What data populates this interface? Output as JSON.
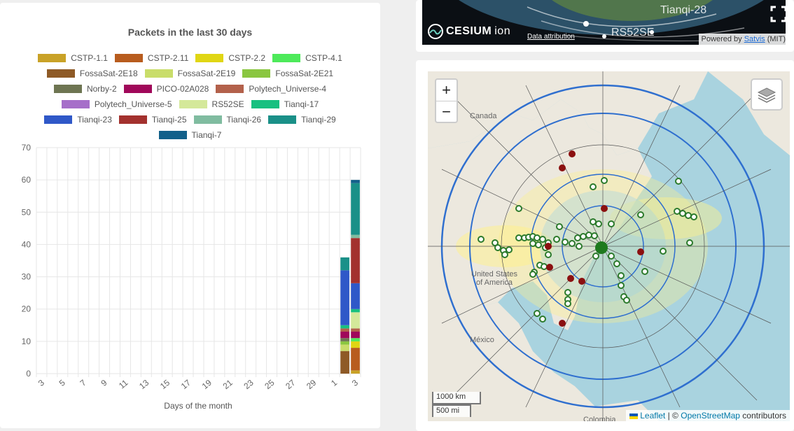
{
  "chart_data": {
    "type": "bar",
    "stacked": true,
    "title": "Packets in the last 30 days",
    "xlabel": "Days of the month",
    "ylabel": "",
    "ylim": [
      0,
      70
    ],
    "yticks": [
      0,
      10,
      20,
      30,
      40,
      50,
      60,
      70
    ],
    "grid": true,
    "legend_position": "top",
    "categories": [
      "3",
      "4",
      "5",
      "6",
      "7",
      "8",
      "9",
      "10",
      "11",
      "12",
      "13",
      "14",
      "15",
      "16",
      "17",
      "18",
      "19",
      "20",
      "21",
      "22",
      "23",
      "24",
      "25",
      "26",
      "27",
      "28",
      "29",
      "30",
      "1",
      "2",
      "3"
    ],
    "x_tick_labels": [
      "3",
      "5",
      "7",
      "9",
      "11",
      "13",
      "15",
      "17",
      "19",
      "21",
      "23",
      "25",
      "27",
      "29",
      "1",
      "3"
    ],
    "series": [
      {
        "name": "CSTP-1.1",
        "color": "#c9a227",
        "values": [
          0,
          0,
          0,
          0,
          0,
          0,
          0,
          0,
          0,
          0,
          0,
          0,
          0,
          0,
          0,
          0,
          0,
          0,
          0,
          0,
          0,
          0,
          0,
          0,
          0,
          0,
          0,
          0,
          0,
          0,
          1
        ]
      },
      {
        "name": "CSTP-2.11",
        "color": "#b85c1e",
        "values": [
          0,
          0,
          0,
          0,
          0,
          0,
          0,
          0,
          0,
          0,
          0,
          0,
          0,
          0,
          0,
          0,
          0,
          0,
          0,
          0,
          0,
          0,
          0,
          0,
          0,
          0,
          0,
          0,
          0,
          0,
          7
        ]
      },
      {
        "name": "CSTP-2.2",
        "color": "#e0d614",
        "values": [
          0,
          0,
          0,
          0,
          0,
          0,
          0,
          0,
          0,
          0,
          0,
          0,
          0,
          0,
          0,
          0,
          0,
          0,
          0,
          0,
          0,
          0,
          0,
          0,
          0,
          0,
          0,
          0,
          0,
          0,
          2
        ]
      },
      {
        "name": "CSTP-4.1",
        "color": "#4dea5a",
        "values": [
          0,
          0,
          0,
          0,
          0,
          0,
          0,
          0,
          0,
          0,
          0,
          0,
          0,
          0,
          0,
          0,
          0,
          0,
          0,
          0,
          0,
          0,
          0,
          0,
          0,
          0,
          0,
          0,
          0,
          0,
          1
        ]
      },
      {
        "name": "FossaSat-2E18",
        "color": "#8e5a26",
        "values": [
          0,
          0,
          0,
          0,
          0,
          0,
          0,
          0,
          0,
          0,
          0,
          0,
          0,
          0,
          0,
          0,
          0,
          0,
          0,
          0,
          0,
          0,
          0,
          0,
          0,
          0,
          0,
          0,
          0,
          7,
          0
        ]
      },
      {
        "name": "FossaSat-2E19",
        "color": "#c9dd6a",
        "values": [
          0,
          0,
          0,
          0,
          0,
          0,
          0,
          0,
          0,
          0,
          0,
          0,
          0,
          0,
          0,
          0,
          0,
          0,
          0,
          0,
          0,
          0,
          0,
          0,
          0,
          0,
          0,
          0,
          0,
          2,
          0
        ]
      },
      {
        "name": "FossaSat-2E21",
        "color": "#8ac640",
        "values": [
          0,
          0,
          0,
          0,
          0,
          0,
          0,
          0,
          0,
          0,
          0,
          0,
          0,
          0,
          0,
          0,
          0,
          0,
          0,
          0,
          0,
          0,
          0,
          0,
          0,
          0,
          0,
          0,
          0,
          1,
          0
        ]
      },
      {
        "name": "Norby-2",
        "color": "#6e7552",
        "values": [
          0,
          0,
          0,
          0,
          0,
          0,
          0,
          0,
          0,
          0,
          0,
          0,
          0,
          0,
          0,
          0,
          0,
          0,
          0,
          0,
          0,
          0,
          0,
          0,
          0,
          0,
          0,
          0,
          0,
          1,
          0
        ]
      },
      {
        "name": "PICO-02A028",
        "color": "#a0085a",
        "values": [
          0,
          0,
          0,
          0,
          0,
          0,
          0,
          0,
          0,
          0,
          0,
          0,
          0,
          0,
          0,
          0,
          0,
          0,
          0,
          0,
          0,
          0,
          0,
          0,
          0,
          0,
          0,
          0,
          0,
          2,
          2
        ]
      },
      {
        "name": "Polytech_Universe-4",
        "color": "#b3614b",
        "values": [
          0,
          0,
          0,
          0,
          0,
          0,
          0,
          0,
          0,
          0,
          0,
          0,
          0,
          0,
          0,
          0,
          0,
          0,
          0,
          0,
          0,
          0,
          0,
          0,
          0,
          0,
          0,
          0,
          0,
          1,
          1
        ]
      },
      {
        "name": "Polytech_Universe-5",
        "color": "#a66fc9",
        "values": [
          0,
          0,
          0,
          0,
          0,
          0,
          0,
          0,
          0,
          0,
          0,
          0,
          0,
          0,
          0,
          0,
          0,
          0,
          0,
          0,
          0,
          0,
          0,
          0,
          0,
          0,
          0,
          0,
          0,
          0,
          0
        ]
      },
      {
        "name": "RS52SE",
        "color": "#d4e89a",
        "values": [
          0,
          0,
          0,
          0,
          0,
          0,
          0,
          0,
          0,
          0,
          0,
          0,
          0,
          0,
          0,
          0,
          0,
          0,
          0,
          0,
          0,
          0,
          0,
          0,
          0,
          0,
          0,
          0,
          0,
          0,
          5
        ]
      },
      {
        "name": "Tianqi-17",
        "color": "#18c080",
        "values": [
          0,
          0,
          0,
          0,
          0,
          0,
          0,
          0,
          0,
          0,
          0,
          0,
          0,
          0,
          0,
          0,
          0,
          0,
          0,
          0,
          0,
          0,
          0,
          0,
          0,
          0,
          0,
          0,
          0,
          1,
          1
        ]
      },
      {
        "name": "Tianqi-23",
        "color": "#2f58c8",
        "values": [
          0,
          0,
          0,
          0,
          0,
          0,
          0,
          0,
          0,
          0,
          0,
          0,
          0,
          0,
          0,
          0,
          0,
          0,
          0,
          0,
          0,
          0,
          0,
          0,
          0,
          0,
          0,
          0,
          0,
          17,
          8
        ]
      },
      {
        "name": "Tianqi-25",
        "color": "#a3312e",
        "values": [
          0,
          0,
          0,
          0,
          0,
          0,
          0,
          0,
          0,
          0,
          0,
          0,
          0,
          0,
          0,
          0,
          0,
          0,
          0,
          0,
          0,
          0,
          0,
          0,
          0,
          0,
          0,
          0,
          0,
          0,
          14
        ]
      },
      {
        "name": "Tianqi-26",
        "color": "#80bca0",
        "values": [
          0,
          0,
          0,
          0,
          0,
          0,
          0,
          0,
          0,
          0,
          0,
          0,
          0,
          0,
          0,
          0,
          0,
          0,
          0,
          0,
          0,
          0,
          0,
          0,
          0,
          0,
          0,
          0,
          0,
          0,
          1
        ]
      },
      {
        "name": "Tianqi-29",
        "color": "#1a9088",
        "values": [
          0,
          0,
          0,
          0,
          0,
          0,
          0,
          0,
          0,
          0,
          0,
          0,
          0,
          0,
          0,
          0,
          0,
          0,
          0,
          0,
          0,
          0,
          0,
          0,
          0,
          0,
          0,
          0,
          0,
          4,
          16
        ]
      },
      {
        "name": "Tianqi-7",
        "color": "#12608a",
        "values": [
          0,
          0,
          0,
          0,
          0,
          0,
          0,
          0,
          0,
          0,
          0,
          0,
          0,
          0,
          0,
          0,
          0,
          0,
          0,
          0,
          0,
          0,
          0,
          0,
          0,
          0,
          0,
          0,
          0,
          0,
          1
        ]
      }
    ]
  },
  "legend_rows": [
    [
      0,
      1,
      2,
      3
    ],
    [
      4,
      5,
      6
    ],
    [
      7,
      8,
      9
    ],
    [
      10,
      11,
      12
    ],
    [
      13,
      14,
      15,
      16
    ],
    [
      17
    ]
  ],
  "cesium": {
    "logo_text": "CESIUM",
    "logo_suffix": "ion",
    "data_attribution": "Data attribution",
    "powered_by": "Powered by",
    "powered_link": "Satvis",
    "powered_suffix": "(MIT)",
    "sat_labels": [
      "Tianqi-28",
      "RS52SE"
    ]
  },
  "map": {
    "zoom_in": "+",
    "zoom_out": "−",
    "scale_km": "1000 km",
    "scale_mi": "500 mi",
    "attribution_leaflet": "Leaflet",
    "attribution_sep": "| ©",
    "attribution_osm": "OpenStreetMap",
    "attribution_suffix": "contributors",
    "labels": {
      "canada": "Canada",
      "usa_line1": "United States",
      "usa_line2": "of America",
      "mexico": "México",
      "colombia": "Colombia"
    }
  }
}
